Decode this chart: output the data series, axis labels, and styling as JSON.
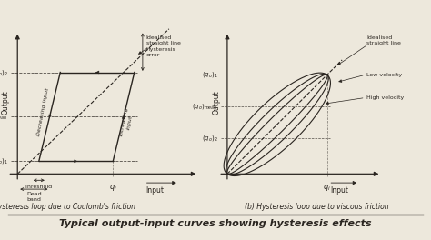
{
  "bg_color": "#ede8dc",
  "line_color": "#2a2520",
  "title": "Typical output-input curves showing hysteresis effects",
  "caption_a": "(a) Hysteresis loop due to Coulomb's friction",
  "caption_b": "(b) Hysteresis loop due to viscous friction"
}
